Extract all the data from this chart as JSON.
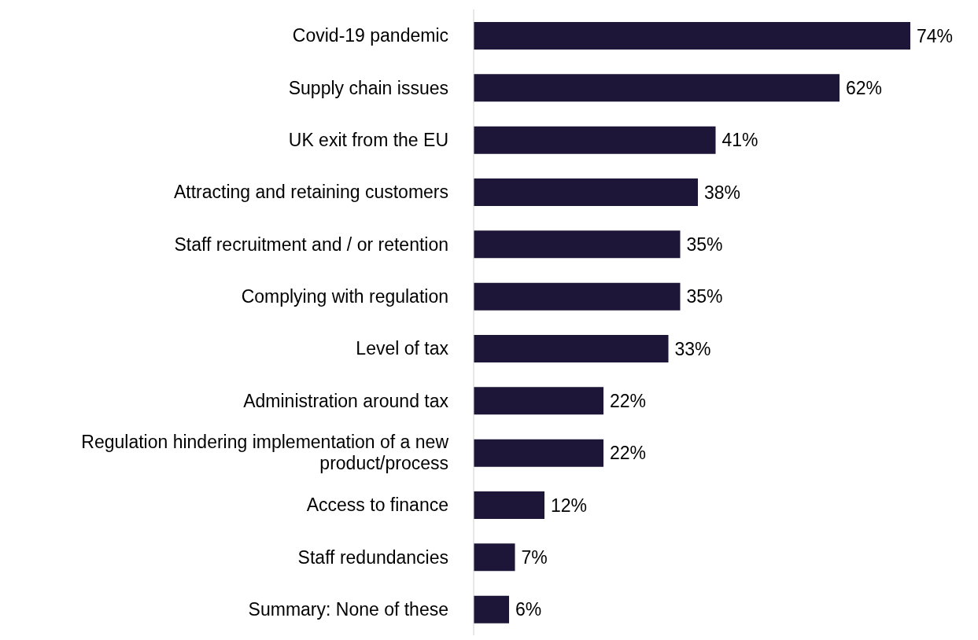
{
  "chart_data": {
    "type": "bar",
    "orientation": "horizontal",
    "categories": [
      "Covid-19 pandemic",
      "Supply chain issues",
      "UK exit from the EU",
      "Attracting and retaining customers",
      "Staff recruitment and / or retention",
      "Complying with regulation",
      "Level of tax",
      "Administration around tax",
      "Regulation hindering implementation of a new product/process",
      "Access to finance",
      "Staff redundancies",
      "Summary: None of these"
    ],
    "values": [
      74,
      62,
      41,
      38,
      35,
      35,
      33,
      22,
      22,
      12,
      7,
      6
    ],
    "value_labels": [
      "74%",
      "62%",
      "41%",
      "38%",
      "35%",
      "35%",
      "33%",
      "22%",
      "22%",
      "12%",
      "7%",
      "6%"
    ],
    "color": "#1e1638"
  }
}
